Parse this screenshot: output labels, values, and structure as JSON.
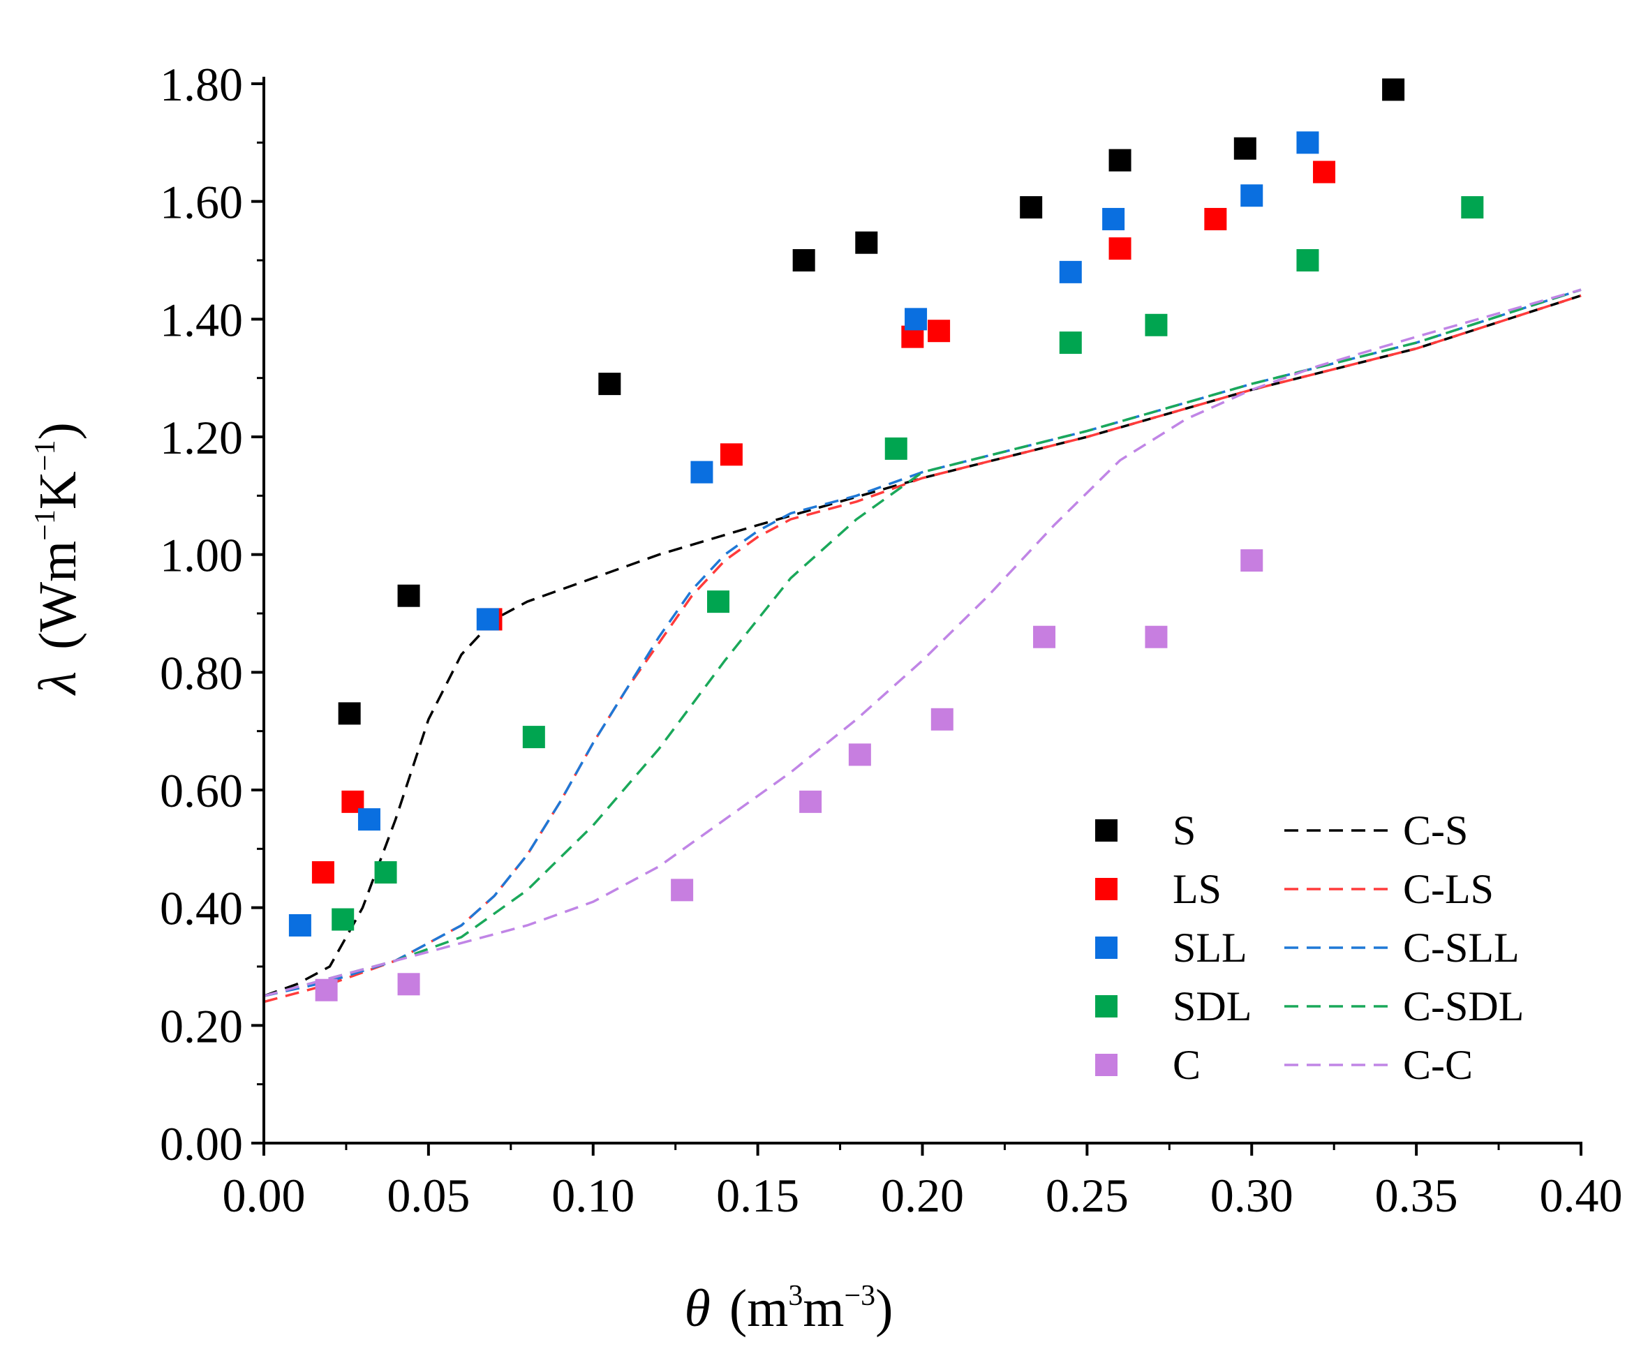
{
  "chart_data": {
    "type": "scatter",
    "title": "",
    "xlabel": {
      "symbol": "θ",
      "text_parts": [
        "(m",
        "3",
        "m",
        "−3",
        ")"
      ]
    },
    "ylabel": {
      "symbol": "λ",
      "text_parts": [
        "(Wm",
        "−1",
        "K",
        "−1",
        ")"
      ]
    },
    "xlim": [
      0.0,
      0.4
    ],
    "ylim": [
      0.0,
      1.8
    ],
    "xticks": [
      "0.00",
      "0.05",
      "0.10",
      "0.15",
      "0.20",
      "0.25",
      "0.30",
      "0.35",
      "0.40"
    ],
    "yticks": [
      "0.00",
      "0.20",
      "0.40",
      "0.60",
      "0.80",
      "1.00",
      "1.20",
      "1.40",
      "1.60",
      "1.80"
    ],
    "xtick_values": [
      0.0,
      0.05,
      0.1,
      0.15,
      0.2,
      0.25,
      0.3,
      0.35,
      0.4
    ],
    "ytick_values": [
      0.0,
      0.2,
      0.4,
      0.6,
      0.8,
      1.0,
      1.2,
      1.4,
      1.6,
      1.8
    ],
    "legend_position": "lower-right",
    "series": [
      {
        "name": "S",
        "kind": "marker",
        "color": "#000000",
        "points": [
          [
            0.026,
            0.73
          ],
          [
            0.044,
            0.93
          ],
          [
            0.105,
            1.29
          ],
          [
            0.164,
            1.5
          ],
          [
            0.183,
            1.53
          ],
          [
            0.233,
            1.59
          ],
          [
            0.26,
            1.67
          ],
          [
            0.298,
            1.69
          ],
          [
            0.343,
            1.79
          ]
        ]
      },
      {
        "name": "LS",
        "kind": "marker",
        "color": "#ff0000",
        "points": [
          [
            0.018,
            0.46
          ],
          [
            0.027,
            0.58
          ],
          [
            0.069,
            0.89
          ],
          [
            0.142,
            1.17
          ],
          [
            0.197,
            1.37
          ],
          [
            0.205,
            1.38
          ],
          [
            0.26,
            1.52
          ],
          [
            0.289,
            1.57
          ],
          [
            0.322,
            1.65
          ]
        ]
      },
      {
        "name": "SLL",
        "kind": "marker",
        "color": "#0a6fe0",
        "points": [
          [
            0.011,
            0.37
          ],
          [
            0.032,
            0.55
          ],
          [
            0.068,
            0.89
          ],
          [
            0.133,
            1.14
          ],
          [
            0.198,
            1.4
          ],
          [
            0.245,
            1.48
          ],
          [
            0.258,
            1.57
          ],
          [
            0.3,
            1.61
          ],
          [
            0.317,
            1.7
          ]
        ]
      },
      {
        "name": "SDL",
        "kind": "marker",
        "color": "#00a550",
        "points": [
          [
            0.024,
            0.38
          ],
          [
            0.037,
            0.46
          ],
          [
            0.082,
            0.69
          ],
          [
            0.138,
            0.92
          ],
          [
            0.192,
            1.18
          ],
          [
            0.245,
            1.36
          ],
          [
            0.271,
            1.39
          ],
          [
            0.317,
            1.5
          ],
          [
            0.367,
            1.59
          ]
        ]
      },
      {
        "name": "C",
        "kind": "marker",
        "color": "#c77ee0",
        "points": [
          [
            0.019,
            0.26
          ],
          [
            0.044,
            0.27
          ],
          [
            0.127,
            0.43
          ],
          [
            0.166,
            0.58
          ],
          [
            0.181,
            0.66
          ],
          [
            0.206,
            0.72
          ],
          [
            0.237,
            0.86
          ],
          [
            0.271,
            0.86
          ],
          [
            0.3,
            0.99
          ]
        ]
      },
      {
        "name": "C-S",
        "kind": "line",
        "color": "#000000",
        "points": [
          [
            0.0,
            0.25
          ],
          [
            0.01,
            0.27
          ],
          [
            0.02,
            0.3
          ],
          [
            0.03,
            0.4
          ],
          [
            0.04,
            0.55
          ],
          [
            0.05,
            0.72
          ],
          [
            0.06,
            0.83
          ],
          [
            0.07,
            0.89
          ],
          [
            0.08,
            0.92
          ],
          [
            0.1,
            0.96
          ],
          [
            0.12,
            1.0
          ],
          [
            0.15,
            1.05
          ],
          [
            0.2,
            1.13
          ],
          [
            0.25,
            1.2
          ],
          [
            0.3,
            1.28
          ],
          [
            0.35,
            1.35
          ],
          [
            0.4,
            1.44
          ]
        ]
      },
      {
        "name": "C-LS",
        "kind": "line",
        "color": "#ff3b3b",
        "points": [
          [
            0.0,
            0.24
          ],
          [
            0.02,
            0.27
          ],
          [
            0.04,
            0.31
          ],
          [
            0.06,
            0.37
          ],
          [
            0.07,
            0.42
          ],
          [
            0.08,
            0.49
          ],
          [
            0.09,
            0.58
          ],
          [
            0.1,
            0.68
          ],
          [
            0.11,
            0.77
          ],
          [
            0.12,
            0.85
          ],
          [
            0.13,
            0.93
          ],
          [
            0.14,
            0.99
          ],
          [
            0.15,
            1.03
          ],
          [
            0.16,
            1.06
          ],
          [
            0.18,
            1.09
          ],
          [
            0.2,
            1.13
          ],
          [
            0.25,
            1.2
          ],
          [
            0.3,
            1.28
          ],
          [
            0.35,
            1.35
          ],
          [
            0.4,
            1.44
          ]
        ]
      },
      {
        "name": "C-SLL",
        "kind": "line",
        "color": "#1f78d6",
        "points": [
          [
            0.0,
            0.25
          ],
          [
            0.02,
            0.275
          ],
          [
            0.04,
            0.31
          ],
          [
            0.06,
            0.37
          ],
          [
            0.07,
            0.42
          ],
          [
            0.08,
            0.49
          ],
          [
            0.09,
            0.58
          ],
          [
            0.1,
            0.68
          ],
          [
            0.11,
            0.77
          ],
          [
            0.12,
            0.86
          ],
          [
            0.13,
            0.94
          ],
          [
            0.14,
            1.0
          ],
          [
            0.15,
            1.04
          ],
          [
            0.16,
            1.07
          ],
          [
            0.18,
            1.1
          ],
          [
            0.2,
            1.14
          ],
          [
            0.25,
            1.21
          ],
          [
            0.3,
            1.29
          ],
          [
            0.35,
            1.36
          ],
          [
            0.4,
            1.45
          ]
        ]
      },
      {
        "name": "C-SDL",
        "kind": "line",
        "color": "#1aa85a",
        "points": [
          [
            0.0,
            0.25
          ],
          [
            0.02,
            0.28
          ],
          [
            0.04,
            0.31
          ],
          [
            0.06,
            0.35
          ],
          [
            0.08,
            0.43
          ],
          [
            0.1,
            0.54
          ],
          [
            0.12,
            0.67
          ],
          [
            0.14,
            0.82
          ],
          [
            0.16,
            0.96
          ],
          [
            0.18,
            1.06
          ],
          [
            0.19,
            1.1
          ],
          [
            0.2,
            1.14
          ],
          [
            0.25,
            1.21
          ],
          [
            0.3,
            1.29
          ],
          [
            0.35,
            1.36
          ],
          [
            0.4,
            1.45
          ]
        ]
      },
      {
        "name": "C-C",
        "kind": "line",
        "color": "#c085e6",
        "points": [
          [
            0.0,
            0.25
          ],
          [
            0.02,
            0.28
          ],
          [
            0.04,
            0.31
          ],
          [
            0.06,
            0.34
          ],
          [
            0.08,
            0.37
          ],
          [
            0.1,
            0.41
          ],
          [
            0.12,
            0.47
          ],
          [
            0.14,
            0.55
          ],
          [
            0.16,
            0.63
          ],
          [
            0.18,
            0.72
          ],
          [
            0.2,
            0.82
          ],
          [
            0.22,
            0.93
          ],
          [
            0.24,
            1.05
          ],
          [
            0.26,
            1.16
          ],
          [
            0.28,
            1.23
          ],
          [
            0.3,
            1.28
          ],
          [
            0.32,
            1.32
          ],
          [
            0.35,
            1.37
          ],
          [
            0.4,
            1.45
          ]
        ]
      }
    ]
  }
}
